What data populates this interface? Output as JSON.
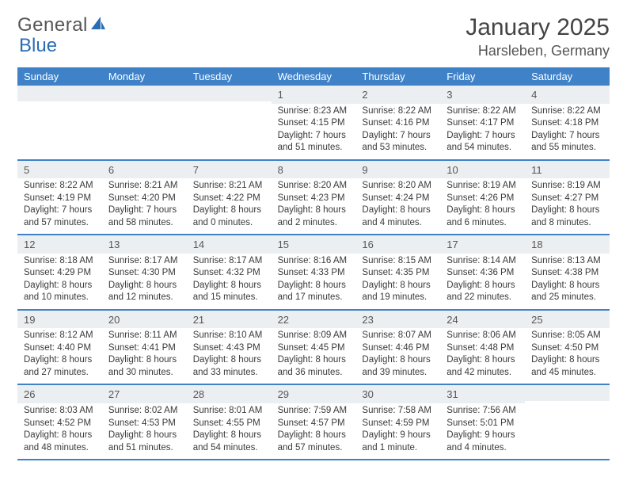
{
  "header": {
    "logo_word1": "General",
    "logo_word2": "Blue",
    "month_title": "January 2025",
    "location": "Harsleben, Germany"
  },
  "style": {
    "header_bg": "#3f82c8",
    "header_text": "#ffffff",
    "daynum_bg": "#eceff1",
    "border_color": "#3f82c8",
    "body_text": "#3a3a3a",
    "logo_blue": "#2a6db5"
  },
  "columns": [
    "Sunday",
    "Monday",
    "Tuesday",
    "Wednesday",
    "Thursday",
    "Friday",
    "Saturday"
  ],
  "weeks": [
    [
      {
        "n": "",
        "sr": "",
        "ss": "",
        "d1": "",
        "d2": ""
      },
      {
        "n": "",
        "sr": "",
        "ss": "",
        "d1": "",
        "d2": ""
      },
      {
        "n": "",
        "sr": "",
        "ss": "",
        "d1": "",
        "d2": ""
      },
      {
        "n": "1",
        "sr": "Sunrise: 8:23 AM",
        "ss": "Sunset: 4:15 PM",
        "d1": "Daylight: 7 hours",
        "d2": "and 51 minutes."
      },
      {
        "n": "2",
        "sr": "Sunrise: 8:22 AM",
        "ss": "Sunset: 4:16 PM",
        "d1": "Daylight: 7 hours",
        "d2": "and 53 minutes."
      },
      {
        "n": "3",
        "sr": "Sunrise: 8:22 AM",
        "ss": "Sunset: 4:17 PM",
        "d1": "Daylight: 7 hours",
        "d2": "and 54 minutes."
      },
      {
        "n": "4",
        "sr": "Sunrise: 8:22 AM",
        "ss": "Sunset: 4:18 PM",
        "d1": "Daylight: 7 hours",
        "d2": "and 55 minutes."
      }
    ],
    [
      {
        "n": "5",
        "sr": "Sunrise: 8:22 AM",
        "ss": "Sunset: 4:19 PM",
        "d1": "Daylight: 7 hours",
        "d2": "and 57 minutes."
      },
      {
        "n": "6",
        "sr": "Sunrise: 8:21 AM",
        "ss": "Sunset: 4:20 PM",
        "d1": "Daylight: 7 hours",
        "d2": "and 58 minutes."
      },
      {
        "n": "7",
        "sr": "Sunrise: 8:21 AM",
        "ss": "Sunset: 4:22 PM",
        "d1": "Daylight: 8 hours",
        "d2": "and 0 minutes."
      },
      {
        "n": "8",
        "sr": "Sunrise: 8:20 AM",
        "ss": "Sunset: 4:23 PM",
        "d1": "Daylight: 8 hours",
        "d2": "and 2 minutes."
      },
      {
        "n": "9",
        "sr": "Sunrise: 8:20 AM",
        "ss": "Sunset: 4:24 PM",
        "d1": "Daylight: 8 hours",
        "d2": "and 4 minutes."
      },
      {
        "n": "10",
        "sr": "Sunrise: 8:19 AM",
        "ss": "Sunset: 4:26 PM",
        "d1": "Daylight: 8 hours",
        "d2": "and 6 minutes."
      },
      {
        "n": "11",
        "sr": "Sunrise: 8:19 AM",
        "ss": "Sunset: 4:27 PM",
        "d1": "Daylight: 8 hours",
        "d2": "and 8 minutes."
      }
    ],
    [
      {
        "n": "12",
        "sr": "Sunrise: 8:18 AM",
        "ss": "Sunset: 4:29 PM",
        "d1": "Daylight: 8 hours",
        "d2": "and 10 minutes."
      },
      {
        "n": "13",
        "sr": "Sunrise: 8:17 AM",
        "ss": "Sunset: 4:30 PM",
        "d1": "Daylight: 8 hours",
        "d2": "and 12 minutes."
      },
      {
        "n": "14",
        "sr": "Sunrise: 8:17 AM",
        "ss": "Sunset: 4:32 PM",
        "d1": "Daylight: 8 hours",
        "d2": "and 15 minutes."
      },
      {
        "n": "15",
        "sr": "Sunrise: 8:16 AM",
        "ss": "Sunset: 4:33 PM",
        "d1": "Daylight: 8 hours",
        "d2": "and 17 minutes."
      },
      {
        "n": "16",
        "sr": "Sunrise: 8:15 AM",
        "ss": "Sunset: 4:35 PM",
        "d1": "Daylight: 8 hours",
        "d2": "and 19 minutes."
      },
      {
        "n": "17",
        "sr": "Sunrise: 8:14 AM",
        "ss": "Sunset: 4:36 PM",
        "d1": "Daylight: 8 hours",
        "d2": "and 22 minutes."
      },
      {
        "n": "18",
        "sr": "Sunrise: 8:13 AM",
        "ss": "Sunset: 4:38 PM",
        "d1": "Daylight: 8 hours",
        "d2": "and 25 minutes."
      }
    ],
    [
      {
        "n": "19",
        "sr": "Sunrise: 8:12 AM",
        "ss": "Sunset: 4:40 PM",
        "d1": "Daylight: 8 hours",
        "d2": "and 27 minutes."
      },
      {
        "n": "20",
        "sr": "Sunrise: 8:11 AM",
        "ss": "Sunset: 4:41 PM",
        "d1": "Daylight: 8 hours",
        "d2": "and 30 minutes."
      },
      {
        "n": "21",
        "sr": "Sunrise: 8:10 AM",
        "ss": "Sunset: 4:43 PM",
        "d1": "Daylight: 8 hours",
        "d2": "and 33 minutes."
      },
      {
        "n": "22",
        "sr": "Sunrise: 8:09 AM",
        "ss": "Sunset: 4:45 PM",
        "d1": "Daylight: 8 hours",
        "d2": "and 36 minutes."
      },
      {
        "n": "23",
        "sr": "Sunrise: 8:07 AM",
        "ss": "Sunset: 4:46 PM",
        "d1": "Daylight: 8 hours",
        "d2": "and 39 minutes."
      },
      {
        "n": "24",
        "sr": "Sunrise: 8:06 AM",
        "ss": "Sunset: 4:48 PM",
        "d1": "Daylight: 8 hours",
        "d2": "and 42 minutes."
      },
      {
        "n": "25",
        "sr": "Sunrise: 8:05 AM",
        "ss": "Sunset: 4:50 PM",
        "d1": "Daylight: 8 hours",
        "d2": "and 45 minutes."
      }
    ],
    [
      {
        "n": "26",
        "sr": "Sunrise: 8:03 AM",
        "ss": "Sunset: 4:52 PM",
        "d1": "Daylight: 8 hours",
        "d2": "and 48 minutes."
      },
      {
        "n": "27",
        "sr": "Sunrise: 8:02 AM",
        "ss": "Sunset: 4:53 PM",
        "d1": "Daylight: 8 hours",
        "d2": "and 51 minutes."
      },
      {
        "n": "28",
        "sr": "Sunrise: 8:01 AM",
        "ss": "Sunset: 4:55 PM",
        "d1": "Daylight: 8 hours",
        "d2": "and 54 minutes."
      },
      {
        "n": "29",
        "sr": "Sunrise: 7:59 AM",
        "ss": "Sunset: 4:57 PM",
        "d1": "Daylight: 8 hours",
        "d2": "and 57 minutes."
      },
      {
        "n": "30",
        "sr": "Sunrise: 7:58 AM",
        "ss": "Sunset: 4:59 PM",
        "d1": "Daylight: 9 hours",
        "d2": "and 1 minute."
      },
      {
        "n": "31",
        "sr": "Sunrise: 7:56 AM",
        "ss": "Sunset: 5:01 PM",
        "d1": "Daylight: 9 hours",
        "d2": "and 4 minutes."
      },
      {
        "n": "",
        "sr": "",
        "ss": "",
        "d1": "",
        "d2": ""
      }
    ]
  ]
}
